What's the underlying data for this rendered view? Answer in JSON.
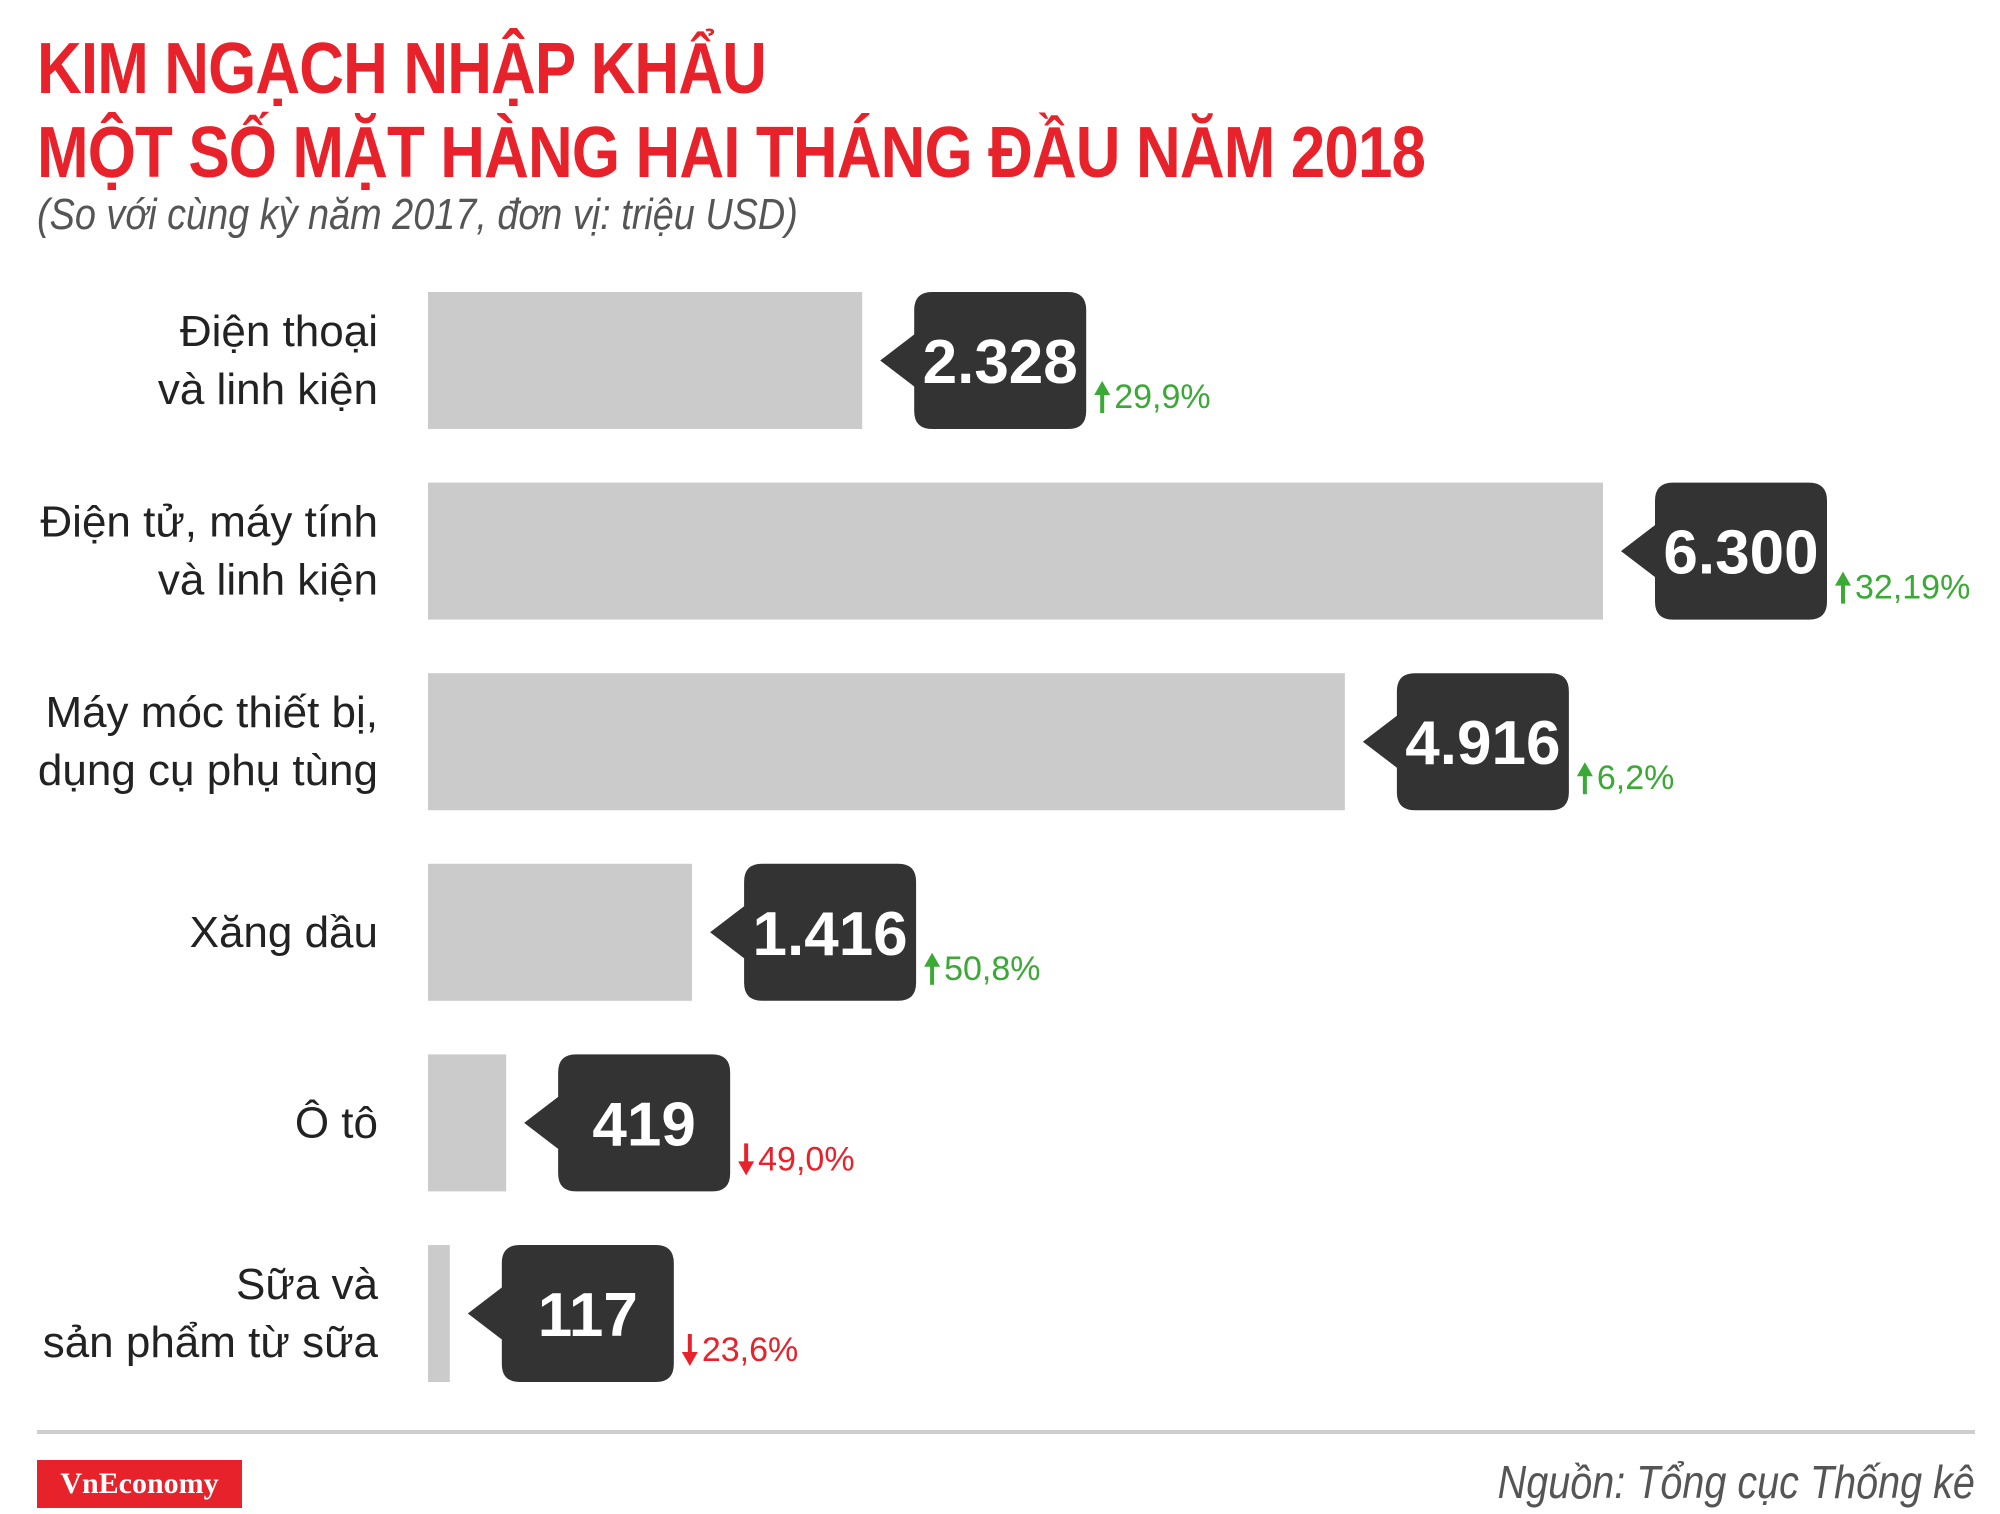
{
  "header": {
    "title_line1": "KIM NGẠCH NHẬP KHẨU",
    "title_line2": "MỘT SỐ MẶT HÀNG HAI THÁNG ĐẦU NĂM 2018",
    "subtitle": "(So với cùng kỳ năm 2017, đơn vị: triệu USD)"
  },
  "footer": {
    "brand": "VnEconomy",
    "source": "Nguồn: Tổng cục Thống kê"
  },
  "colors": {
    "title": "#e8222a",
    "bar": "#cccbcb",
    "callout": "#333333",
    "up": "#3aa935",
    "down": "#e8222a"
  },
  "chart_data": {
    "type": "bar",
    "orientation": "horizontal",
    "title": "KIM NGẠCH NHẬP KHẨU MỘT SỐ MẶT HÀNG HAI THÁNG ĐẦU NĂM 2018",
    "subtitle": "(So với cùng kỳ năm 2017, đơn vị: triệu USD)",
    "grid": false,
    "xlim": [
      0,
      6300
    ],
    "items": [
      {
        "label_lines": [
          "Điện thoại",
          "và linh kiện"
        ],
        "value": 2328,
        "value_label": "2.328",
        "change": 29.9,
        "change_label": "29,9%",
        "direction": "up"
      },
      {
        "label_lines": [
          "Điện tử, máy tính",
          "và linh kiện"
        ],
        "value": 6300,
        "value_label": "6.300",
        "change": 32.19,
        "change_label": "32,19%",
        "direction": "up"
      },
      {
        "label_lines": [
          "Máy móc thiết bị,",
          "dụng cụ phụ tùng"
        ],
        "value": 4916,
        "value_label": "4.916",
        "change": 6.2,
        "change_label": "6,2%",
        "direction": "up"
      },
      {
        "label_lines": [
          "Xăng dầu"
        ],
        "value": 1416,
        "value_label": "1.416",
        "change": 50.8,
        "change_label": "50,8%",
        "direction": "up"
      },
      {
        "label_lines": [
          "Ô tô"
        ],
        "value": 419,
        "value_label": "419",
        "change": -49.0,
        "change_label": "49,0%",
        "direction": "down"
      },
      {
        "label_lines": [
          "Sữa và",
          "sản phẩm từ sữa"
        ],
        "value": 117,
        "value_label": "117",
        "change": -23.6,
        "change_label": "23,6%",
        "direction": "down"
      }
    ]
  }
}
